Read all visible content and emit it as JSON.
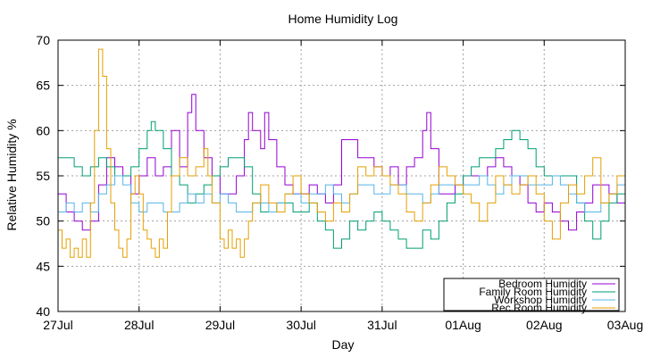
{
  "chart_data": {
    "type": "line",
    "title": "Home Humidity Log",
    "xlabel": "Day",
    "ylabel": "Relative Humidity %",
    "ylim": [
      40,
      70
    ],
    "yticks": [
      40,
      45,
      50,
      55,
      60,
      65,
      70
    ],
    "xlim": [
      0,
      7
    ],
    "xtick_labels": [
      "27Jul",
      "28Jul",
      "29Jul",
      "30Jul",
      "31Jul",
      "01Aug",
      "02Aug",
      "03Aug"
    ],
    "grid": true,
    "legend_position": "bottom-right",
    "series": [
      {
        "name": "Bedroom Humidity",
        "color": "#9400d3",
        "points": [
          [
            0.0,
            53
          ],
          [
            0.1,
            51
          ],
          [
            0.2,
            50
          ],
          [
            0.3,
            49
          ],
          [
            0.4,
            50
          ],
          [
            0.5,
            54
          ],
          [
            0.6,
            57
          ],
          [
            0.7,
            56
          ],
          [
            0.8,
            55
          ],
          [
            0.9,
            53
          ],
          [
            1.0,
            55
          ],
          [
            1.1,
            57
          ],
          [
            1.2,
            55
          ],
          [
            1.3,
            56
          ],
          [
            1.4,
            60
          ],
          [
            1.5,
            56
          ],
          [
            1.6,
            62
          ],
          [
            1.65,
            64
          ],
          [
            1.7,
            60
          ],
          [
            1.8,
            57
          ],
          [
            1.9,
            55
          ],
          [
            2.0,
            53
          ],
          [
            2.1,
            53
          ],
          [
            2.2,
            55
          ],
          [
            2.3,
            59
          ],
          [
            2.35,
            62
          ],
          [
            2.4,
            60
          ],
          [
            2.5,
            58
          ],
          [
            2.55,
            62
          ],
          [
            2.6,
            59
          ],
          [
            2.7,
            56
          ],
          [
            2.8,
            54
          ],
          [
            2.9,
            53
          ],
          [
            3.0,
            53
          ],
          [
            3.1,
            54
          ],
          [
            3.2,
            53
          ],
          [
            3.3,
            52
          ],
          [
            3.4,
            54
          ],
          [
            3.5,
            59
          ],
          [
            3.6,
            59
          ],
          [
            3.7,
            57
          ],
          [
            3.8,
            57
          ],
          [
            3.9,
            56
          ],
          [
            4.0,
            55
          ],
          [
            4.1,
            56
          ],
          [
            4.2,
            54
          ],
          [
            4.3,
            56
          ],
          [
            4.4,
            57
          ],
          [
            4.5,
            60
          ],
          [
            4.55,
            62
          ],
          [
            4.6,
            58
          ],
          [
            4.7,
            53
          ],
          [
            4.8,
            53
          ],
          [
            4.9,
            54
          ],
          [
            5.0,
            55
          ],
          [
            5.1,
            55
          ],
          [
            5.2,
            55
          ],
          [
            5.3,
            56
          ],
          [
            5.4,
            57
          ],
          [
            5.5,
            56
          ],
          [
            5.6,
            55
          ],
          [
            5.7,
            54
          ],
          [
            5.8,
            52
          ],
          [
            5.9,
            51
          ],
          [
            6.0,
            52
          ],
          [
            6.1,
            51
          ],
          [
            6.2,
            50
          ],
          [
            6.3,
            49
          ],
          [
            6.4,
            51
          ],
          [
            6.5,
            52
          ],
          [
            6.6,
            54
          ],
          [
            6.7,
            54
          ],
          [
            6.8,
            53
          ],
          [
            6.9,
            52
          ],
          [
            7.0,
            51
          ]
        ]
      },
      {
        "name": "Family Room Humidity",
        "color": "#009e73",
        "points": [
          [
            0.0,
            57
          ],
          [
            0.1,
            57
          ],
          [
            0.2,
            56
          ],
          [
            0.3,
            55
          ],
          [
            0.4,
            56
          ],
          [
            0.5,
            57
          ],
          [
            0.6,
            56
          ],
          [
            0.7,
            55
          ],
          [
            0.8,
            55
          ],
          [
            0.9,
            56
          ],
          [
            1.0,
            58
          ],
          [
            1.1,
            60
          ],
          [
            1.15,
            61
          ],
          [
            1.2,
            60
          ],
          [
            1.3,
            58
          ],
          [
            1.4,
            55
          ],
          [
            1.5,
            54
          ],
          [
            1.6,
            52
          ],
          [
            1.7,
            53
          ],
          [
            1.8,
            54
          ],
          [
            1.9,
            55
          ],
          [
            2.0,
            56
          ],
          [
            2.1,
            57
          ],
          [
            2.2,
            57
          ],
          [
            2.3,
            56
          ],
          [
            2.4,
            53
          ],
          [
            2.5,
            51
          ],
          [
            2.6,
            51
          ],
          [
            2.7,
            52
          ],
          [
            2.8,
            52
          ],
          [
            2.9,
            51
          ],
          [
            3.0,
            51
          ],
          [
            3.1,
            52
          ],
          [
            3.2,
            50
          ],
          [
            3.3,
            49
          ],
          [
            3.4,
            47
          ],
          [
            3.5,
            48
          ],
          [
            3.6,
            50
          ],
          [
            3.7,
            49
          ],
          [
            3.8,
            50
          ],
          [
            3.9,
            51
          ],
          [
            4.0,
            50
          ],
          [
            4.1,
            49
          ],
          [
            4.2,
            48
          ],
          [
            4.3,
            47
          ],
          [
            4.4,
            47
          ],
          [
            4.5,
            49
          ],
          [
            4.6,
            48
          ],
          [
            4.7,
            50
          ],
          [
            4.8,
            52
          ],
          [
            4.9,
            53
          ],
          [
            5.0,
            55
          ],
          [
            5.1,
            56
          ],
          [
            5.2,
            57
          ],
          [
            5.3,
            57
          ],
          [
            5.4,
            58
          ],
          [
            5.5,
            59
          ],
          [
            5.6,
            60
          ],
          [
            5.7,
            59
          ],
          [
            5.8,
            58
          ],
          [
            5.9,
            56
          ],
          [
            6.0,
            55
          ],
          [
            6.1,
            55
          ],
          [
            6.2,
            55
          ],
          [
            6.3,
            55
          ],
          [
            6.4,
            52
          ],
          [
            6.5,
            50
          ],
          [
            6.6,
            48
          ],
          [
            6.7,
            50
          ],
          [
            6.8,
            52
          ],
          [
            6.9,
            53
          ],
          [
            7.0,
            55
          ]
        ]
      },
      {
        "name": "Workshop Humidity",
        "color": "#56b4e9",
        "points": [
          [
            0.0,
            51
          ],
          [
            0.1,
            52
          ],
          [
            0.2,
            51
          ],
          [
            0.3,
            52
          ],
          [
            0.4,
            51
          ],
          [
            0.5,
            53
          ],
          [
            0.6,
            54
          ],
          [
            0.7,
            55
          ],
          [
            0.8,
            54
          ],
          [
            0.9,
            52
          ],
          [
            1.0,
            51
          ],
          [
            1.1,
            52
          ],
          [
            1.2,
            52
          ],
          [
            1.3,
            51
          ],
          [
            1.4,
            51
          ],
          [
            1.5,
            52
          ],
          [
            1.6,
            53
          ],
          [
            1.7,
            52
          ],
          [
            1.8,
            53
          ],
          [
            1.9,
            52
          ],
          [
            2.0,
            53
          ],
          [
            2.1,
            52
          ],
          [
            2.2,
            51
          ],
          [
            2.3,
            51
          ],
          [
            2.4,
            52
          ],
          [
            2.5,
            52
          ],
          [
            2.6,
            51
          ],
          [
            2.7,
            52
          ],
          [
            2.8,
            53
          ],
          [
            2.9,
            53
          ],
          [
            3.0,
            52
          ],
          [
            3.1,
            53
          ],
          [
            3.2,
            53
          ],
          [
            3.3,
            54
          ],
          [
            3.4,
            53
          ],
          [
            3.5,
            52
          ],
          [
            3.6,
            53
          ],
          [
            3.7,
            54
          ],
          [
            3.8,
            54
          ],
          [
            3.9,
            53
          ],
          [
            4.0,
            53
          ],
          [
            4.1,
            54
          ],
          [
            4.2,
            54
          ],
          [
            4.3,
            53
          ],
          [
            4.4,
            53
          ],
          [
            4.5,
            52
          ],
          [
            4.6,
            53
          ],
          [
            4.7,
            54
          ],
          [
            4.8,
            54
          ],
          [
            4.9,
            54
          ],
          [
            5.0,
            54
          ],
          [
            5.1,
            54
          ],
          [
            5.2,
            55
          ],
          [
            5.3,
            54
          ],
          [
            5.4,
            53
          ],
          [
            5.5,
            54
          ],
          [
            5.6,
            55
          ],
          [
            5.7,
            55
          ],
          [
            5.8,
            54
          ],
          [
            5.9,
            54
          ],
          [
            6.0,
            54
          ],
          [
            6.1,
            55
          ],
          [
            6.2,
            54
          ],
          [
            6.3,
            53
          ],
          [
            6.4,
            52
          ],
          [
            6.5,
            51
          ],
          [
            6.6,
            51
          ],
          [
            6.7,
            52
          ],
          [
            6.8,
            53
          ],
          [
            6.9,
            54
          ],
          [
            7.0,
            54
          ]
        ]
      },
      {
        "name": "Rec Room Humidity",
        "color": "#e69f00",
        "points": [
          [
            0.0,
            49
          ],
          [
            0.05,
            47
          ],
          [
            0.1,
            48
          ],
          [
            0.15,
            46
          ],
          [
            0.2,
            47
          ],
          [
            0.25,
            46
          ],
          [
            0.3,
            48
          ],
          [
            0.35,
            46
          ],
          [
            0.4,
            52
          ],
          [
            0.45,
            60
          ],
          [
            0.5,
            69
          ],
          [
            0.55,
            66
          ],
          [
            0.6,
            58
          ],
          [
            0.65,
            52
          ],
          [
            0.7,
            49
          ],
          [
            0.75,
            47
          ],
          [
            0.8,
            46
          ],
          [
            0.85,
            48
          ],
          [
            0.9,
            53
          ],
          [
            0.95,
            55
          ],
          [
            1.0,
            53
          ],
          [
            1.05,
            49
          ],
          [
            1.1,
            48
          ],
          [
            1.15,
            47
          ],
          [
            1.2,
            46
          ],
          [
            1.25,
            48
          ],
          [
            1.3,
            47
          ],
          [
            1.35,
            51
          ],
          [
            1.4,
            55
          ],
          [
            1.5,
            57
          ],
          [
            1.6,
            55
          ],
          [
            1.7,
            56
          ],
          [
            1.8,
            58
          ],
          [
            1.85,
            55
          ],
          [
            1.9,
            52
          ],
          [
            2.0,
            48
          ],
          [
            2.05,
            47
          ],
          [
            2.1,
            49
          ],
          [
            2.15,
            47
          ],
          [
            2.2,
            48
          ],
          [
            2.25,
            46
          ],
          [
            2.3,
            48
          ],
          [
            2.35,
            50
          ],
          [
            2.4,
            52
          ],
          [
            2.5,
            54
          ],
          [
            2.6,
            52
          ],
          [
            2.7,
            51
          ],
          [
            2.8,
            53
          ],
          [
            2.9,
            55
          ],
          [
            3.0,
            53
          ],
          [
            3.1,
            52
          ],
          [
            3.2,
            51
          ],
          [
            3.3,
            50
          ],
          [
            3.4,
            52
          ],
          [
            3.5,
            51
          ],
          [
            3.6,
            53
          ],
          [
            3.7,
            56
          ],
          [
            3.8,
            55
          ],
          [
            3.9,
            56
          ],
          [
            4.0,
            55
          ],
          [
            4.1,
            54
          ],
          [
            4.2,
            53
          ],
          [
            4.3,
            51
          ],
          [
            4.4,
            50
          ],
          [
            4.5,
            52
          ],
          [
            4.6,
            54
          ],
          [
            4.7,
            56
          ],
          [
            4.8,
            55
          ],
          [
            4.9,
            54
          ],
          [
            5.0,
            53
          ],
          [
            5.1,
            52
          ],
          [
            5.2,
            50
          ],
          [
            5.3,
            52
          ],
          [
            5.4,
            55
          ],
          [
            5.5,
            54
          ],
          [
            5.6,
            53
          ],
          [
            5.7,
            54
          ],
          [
            5.8,
            55
          ],
          [
            5.9,
            53
          ],
          [
            6.0,
            50
          ],
          [
            6.1,
            48
          ],
          [
            6.2,
            52
          ],
          [
            6.3,
            54
          ],
          [
            6.4,
            53
          ],
          [
            6.5,
            55
          ],
          [
            6.6,
            57
          ],
          [
            6.7,
            52
          ],
          [
            6.8,
            53
          ],
          [
            6.9,
            55
          ],
          [
            7.0,
            55
          ]
        ]
      }
    ]
  }
}
